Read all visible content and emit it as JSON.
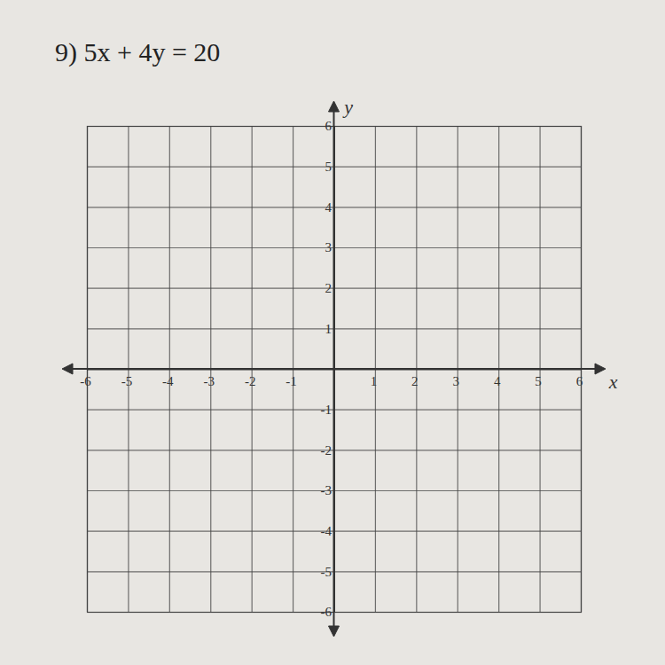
{
  "chart_data": {
    "type": "coordinate_plane",
    "title": "9) 5x + 4y = 20",
    "xlabel": "x",
    "ylabel": "y",
    "xlim": [
      -6,
      6
    ],
    "ylim": [
      -6,
      6
    ],
    "xticks": [
      -6,
      -5,
      -4,
      -3,
      -2,
      -1,
      1,
      2,
      3,
      4,
      5,
      6
    ],
    "yticks": [
      -6,
      -5,
      -4,
      -3,
      -2,
      -1,
      1,
      2,
      3,
      4,
      5,
      6
    ],
    "grid": true
  }
}
